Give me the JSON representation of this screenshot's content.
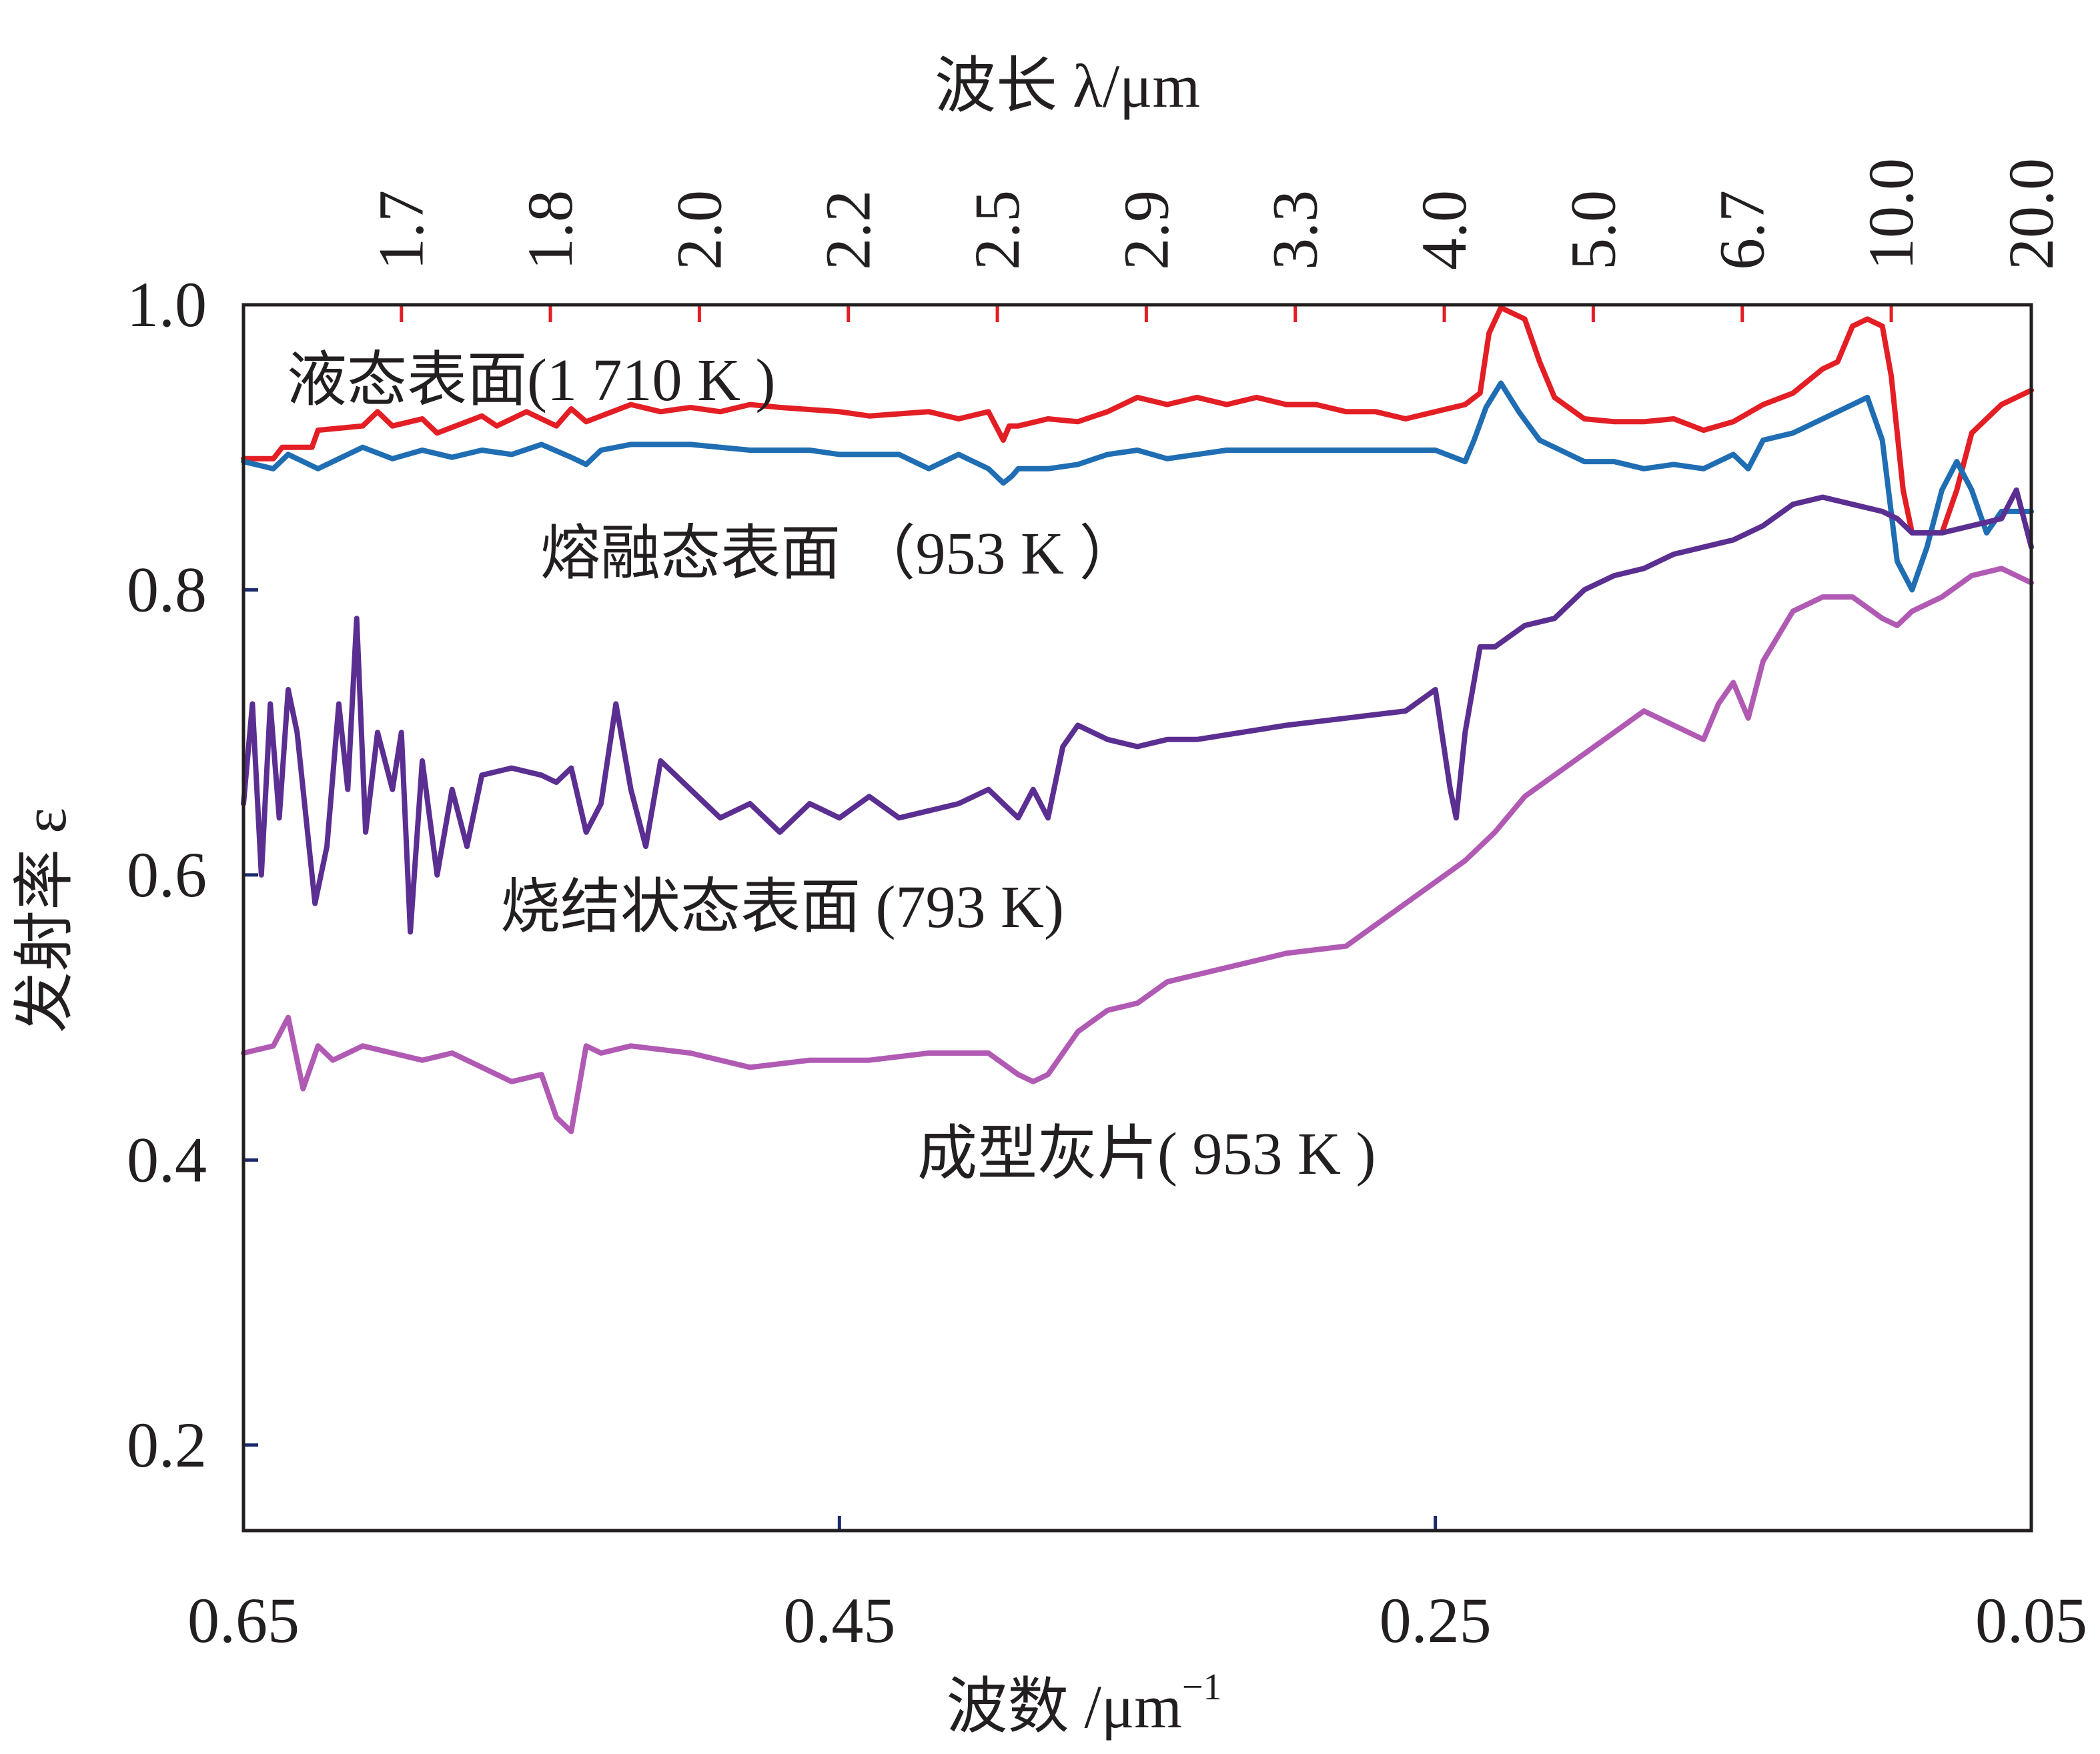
{
  "chart_data": {
    "type": "line",
    "x_axis": {
      "label": "波数 /μm",
      "label_superscript": "−1",
      "range": [
        0.65,
        0.05
      ],
      "reversed": true,
      "ticks": [
        0.65,
        0.45,
        0.25,
        0.05
      ],
      "tick_labels": [
        "0.65",
        "0.45",
        "0.25",
        "0.05"
      ]
    },
    "y_axis": {
      "label": "发射率 ε",
      "range": [
        0.14,
        1.0
      ],
      "ticks": [
        0.2,
        0.4,
        0.6,
        0.8,
        1.0
      ],
      "tick_labels": [
        "0.2",
        "0.4",
        "0.6",
        "0.8",
        "1.0"
      ]
    },
    "top_axis": {
      "label": "波长 λ/μm",
      "ticks": [
        0.597,
        0.547,
        0.497,
        0.447,
        0.397,
        0.347,
        0.297,
        0.247,
        0.197,
        0.147,
        0.097,
        0.05
      ],
      "tick_labels": [
        "1.7",
        "1.8",
        "2.0",
        "2.2",
        "2.5",
        "2.9",
        "3.3",
        "4.0",
        "5.0",
        "6.7",
        "10.0",
        "20.0"
      ]
    },
    "grid": false,
    "series": [
      {
        "name": "液态表面(1 710 K )",
        "color": "#e31e24",
        "x": [
          0.65,
          0.64,
          0.637,
          0.627,
          0.625,
          0.61,
          0.605,
          0.6,
          0.59,
          0.585,
          0.57,
          0.565,
          0.555,
          0.545,
          0.54,
          0.535,
          0.52,
          0.51,
          0.5,
          0.49,
          0.48,
          0.47,
          0.45,
          0.44,
          0.42,
          0.41,
          0.4,
          0.395,
          0.393,
          0.39,
          0.38,
          0.37,
          0.36,
          0.35,
          0.34,
          0.33,
          0.32,
          0.31,
          0.3,
          0.29,
          0.28,
          0.27,
          0.26,
          0.25,
          0.24,
          0.235,
          0.232,
          0.228,
          0.225,
          0.22,
          0.215,
          0.21,
          0.2,
          0.19,
          0.18,
          0.17,
          0.16,
          0.15,
          0.14,
          0.13,
          0.12,
          0.115,
          0.11,
          0.105,
          0.1,
          0.097,
          0.093,
          0.09,
          0.085,
          0.08,
          0.075,
          0.07,
          0.06,
          0.05
        ],
        "y": [
          0.892,
          0.892,
          0.9,
          0.9,
          0.912,
          0.915,
          0.925,
          0.915,
          0.92,
          0.91,
          0.922,
          0.915,
          0.925,
          0.915,
          0.927,
          0.918,
          0.93,
          0.925,
          0.928,
          0.925,
          0.93,
          0.928,
          0.925,
          0.922,
          0.925,
          0.92,
          0.925,
          0.905,
          0.915,
          0.915,
          0.92,
          0.918,
          0.925,
          0.935,
          0.93,
          0.935,
          0.93,
          0.935,
          0.93,
          0.93,
          0.925,
          0.925,
          0.92,
          0.925,
          0.93,
          0.938,
          0.98,
          0.998,
          0.995,
          0.99,
          0.96,
          0.935,
          0.92,
          0.918,
          0.918,
          0.92,
          0.912,
          0.918,
          0.93,
          0.938,
          0.955,
          0.96,
          0.985,
          0.99,
          0.985,
          0.95,
          0.87,
          0.84,
          0.84,
          0.84,
          0.87,
          0.91,
          0.93,
          0.94
        ]
      },
      {
        "name": "熔融态表面 （953 K ）",
        "color": "#1f6db3",
        "x": [
          0.65,
          0.64,
          0.635,
          0.625,
          0.62,
          0.61,
          0.6,
          0.59,
          0.58,
          0.57,
          0.56,
          0.55,
          0.54,
          0.535,
          0.53,
          0.52,
          0.5,
          0.48,
          0.46,
          0.45,
          0.43,
          0.42,
          0.41,
          0.4,
          0.395,
          0.392,
          0.39,
          0.38,
          0.37,
          0.36,
          0.35,
          0.34,
          0.33,
          0.32,
          0.3,
          0.28,
          0.26,
          0.25,
          0.24,
          0.237,
          0.233,
          0.228,
          0.222,
          0.215,
          0.21,
          0.2,
          0.19,
          0.18,
          0.17,
          0.16,
          0.15,
          0.145,
          0.14,
          0.13,
          0.12,
          0.11,
          0.105,
          0.1,
          0.095,
          0.09,
          0.085,
          0.08,
          0.075,
          0.07,
          0.065,
          0.06,
          0.05
        ],
        "y": [
          0.89,
          0.885,
          0.895,
          0.885,
          0.89,
          0.9,
          0.892,
          0.898,
          0.893,
          0.898,
          0.895,
          0.902,
          0.893,
          0.888,
          0.898,
          0.902,
          0.902,
          0.898,
          0.898,
          0.895,
          0.895,
          0.885,
          0.895,
          0.885,
          0.875,
          0.88,
          0.885,
          0.885,
          0.888,
          0.895,
          0.898,
          0.892,
          0.895,
          0.898,
          0.898,
          0.898,
          0.898,
          0.898,
          0.89,
          0.905,
          0.928,
          0.945,
          0.925,
          0.905,
          0.9,
          0.89,
          0.89,
          0.885,
          0.888,
          0.885,
          0.895,
          0.885,
          0.905,
          0.91,
          0.92,
          0.93,
          0.935,
          0.905,
          0.82,
          0.8,
          0.83,
          0.87,
          0.89,
          0.87,
          0.84,
          0.855,
          0.855
        ]
      },
      {
        "name": "烧结状态表面 (793 K)",
        "color": "#5b2e91",
        "x": [
          0.65,
          0.647,
          0.644,
          0.641,
          0.638,
          0.635,
          0.632,
          0.629,
          0.626,
          0.622,
          0.618,
          0.615,
          0.612,
          0.609,
          0.605,
          0.6,
          0.597,
          0.594,
          0.59,
          0.585,
          0.58,
          0.575,
          0.57,
          0.56,
          0.55,
          0.545,
          0.54,
          0.535,
          0.53,
          0.525,
          0.52,
          0.515,
          0.51,
          0.5,
          0.49,
          0.48,
          0.47,
          0.46,
          0.45,
          0.44,
          0.43,
          0.42,
          0.41,
          0.4,
          0.39,
          0.385,
          0.38,
          0.375,
          0.37,
          0.36,
          0.35,
          0.34,
          0.33,
          0.3,
          0.28,
          0.26,
          0.25,
          0.245,
          0.243,
          0.24,
          0.235,
          0.23,
          0.22,
          0.21,
          0.2,
          0.19,
          0.18,
          0.17,
          0.16,
          0.15,
          0.14,
          0.13,
          0.12,
          0.11,
          0.1,
          0.095,
          0.09,
          0.08,
          0.07,
          0.06,
          0.055,
          0.05
        ],
        "y": [
          0.65,
          0.72,
          0.6,
          0.72,
          0.64,
          0.73,
          0.7,
          0.64,
          0.58,
          0.62,
          0.72,
          0.66,
          0.78,
          0.63,
          0.7,
          0.66,
          0.7,
          0.56,
          0.68,
          0.6,
          0.66,
          0.62,
          0.67,
          0.675,
          0.67,
          0.665,
          0.675,
          0.63,
          0.65,
          0.72,
          0.66,
          0.62,
          0.68,
          0.66,
          0.64,
          0.65,
          0.63,
          0.65,
          0.64,
          0.655,
          0.64,
          0.645,
          0.65,
          0.66,
          0.64,
          0.66,
          0.64,
          0.69,
          0.705,
          0.695,
          0.69,
          0.695,
          0.695,
          0.705,
          0.71,
          0.715,
          0.73,
          0.66,
          0.64,
          0.7,
          0.76,
          0.76,
          0.775,
          0.78,
          0.8,
          0.81,
          0.815,
          0.825,
          0.83,
          0.835,
          0.845,
          0.86,
          0.865,
          0.86,
          0.855,
          0.85,
          0.84,
          0.84,
          0.845,
          0.85,
          0.87,
          0.83
        ]
      },
      {
        "name": "成型灰片( 953 K )",
        "color": "#b05ab4",
        "x": [
          0.65,
          0.64,
          0.635,
          0.63,
          0.625,
          0.62,
          0.61,
          0.6,
          0.59,
          0.58,
          0.57,
          0.56,
          0.55,
          0.545,
          0.54,
          0.535,
          0.53,
          0.52,
          0.5,
          0.48,
          0.46,
          0.44,
          0.42,
          0.4,
          0.39,
          0.385,
          0.38,
          0.37,
          0.36,
          0.35,
          0.34,
          0.33,
          0.32,
          0.31,
          0.3,
          0.28,
          0.26,
          0.24,
          0.23,
          0.22,
          0.21,
          0.2,
          0.19,
          0.18,
          0.17,
          0.16,
          0.155,
          0.15,
          0.145,
          0.14,
          0.13,
          0.12,
          0.11,
          0.1,
          0.095,
          0.09,
          0.08,
          0.07,
          0.06,
          0.05
        ],
        "y": [
          0.475,
          0.48,
          0.5,
          0.45,
          0.48,
          0.47,
          0.48,
          0.475,
          0.47,
          0.475,
          0.465,
          0.455,
          0.46,
          0.43,
          0.42,
          0.48,
          0.475,
          0.48,
          0.475,
          0.465,
          0.47,
          0.47,
          0.475,
          0.475,
          0.46,
          0.455,
          0.46,
          0.49,
          0.505,
          0.51,
          0.525,
          0.53,
          0.535,
          0.54,
          0.545,
          0.55,
          0.58,
          0.61,
          0.63,
          0.655,
          0.67,
          0.685,
          0.7,
          0.715,
          0.705,
          0.695,
          0.72,
          0.735,
          0.71,
          0.75,
          0.785,
          0.795,
          0.795,
          0.78,
          0.775,
          0.785,
          0.795,
          0.81,
          0.815,
          0.805
        ]
      }
    ],
    "annotations": [
      {
        "text": "液态表面(1 710 K )"
      },
      {
        "text": "熔融态表面 （953 K ）"
      },
      {
        "text": "烧结状态表面 (793 K)"
      },
      {
        "text": "成型灰片( 953 K )"
      }
    ]
  }
}
